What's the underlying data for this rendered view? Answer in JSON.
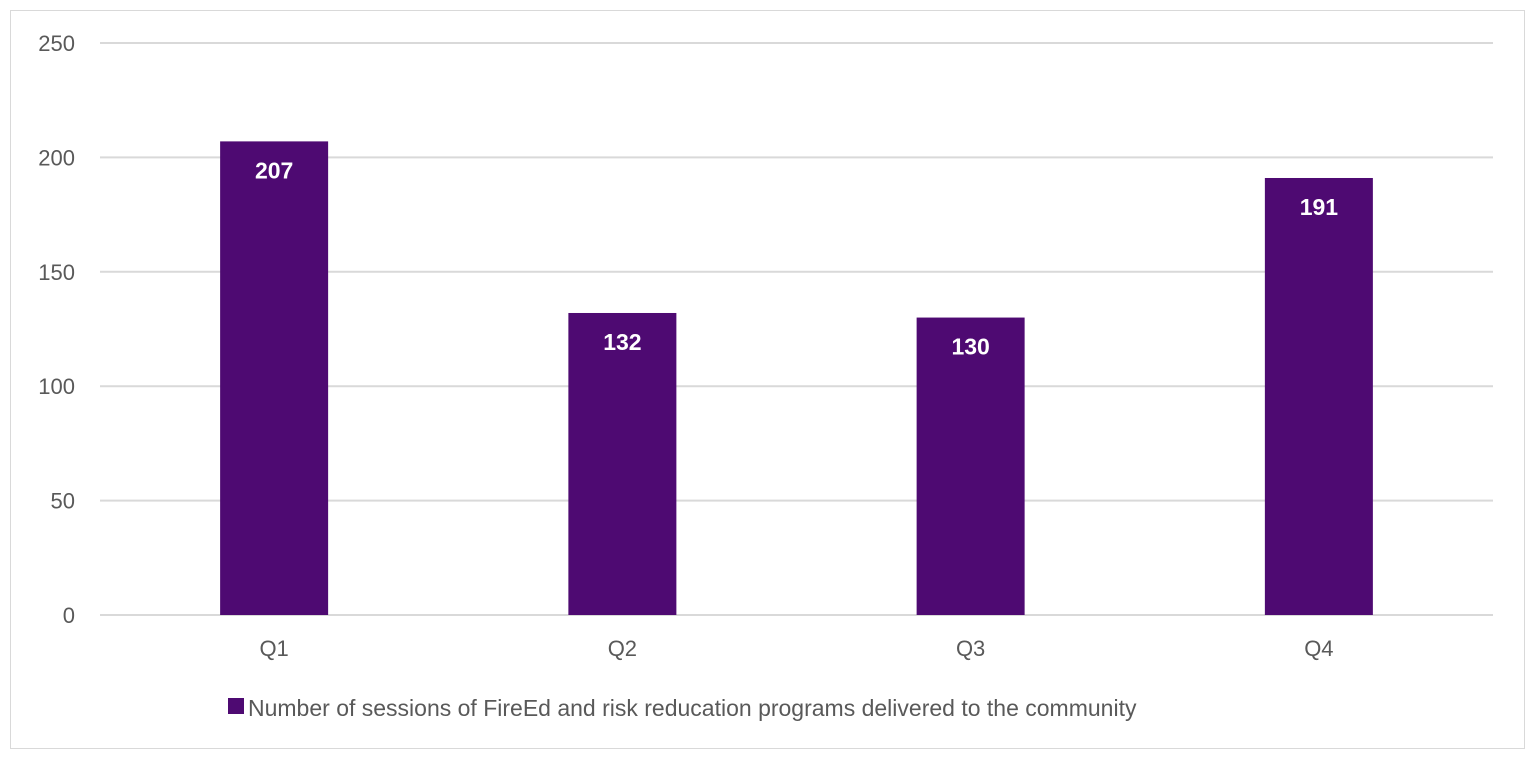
{
  "chart_data": {
    "type": "bar",
    "title": "",
    "xlabel": "",
    "ylabel": "",
    "categories": [
      "Q1",
      "Q2",
      "Q3",
      "Q4"
    ],
    "series": [
      {
        "name": "Number of sessions of FireEd and risk reducation programs delivered to the community",
        "values": [
          207,
          132,
          130,
          191
        ]
      }
    ],
    "ylim": [
      0,
      250
    ],
    "yticks": [
      0,
      50,
      100,
      150,
      200,
      250
    ],
    "grid": true,
    "legend": "bottom",
    "data_labels": true,
    "colors": {
      "bar": "#4e0a72",
      "grid": "#d9d9d9",
      "text": "#595959"
    }
  }
}
